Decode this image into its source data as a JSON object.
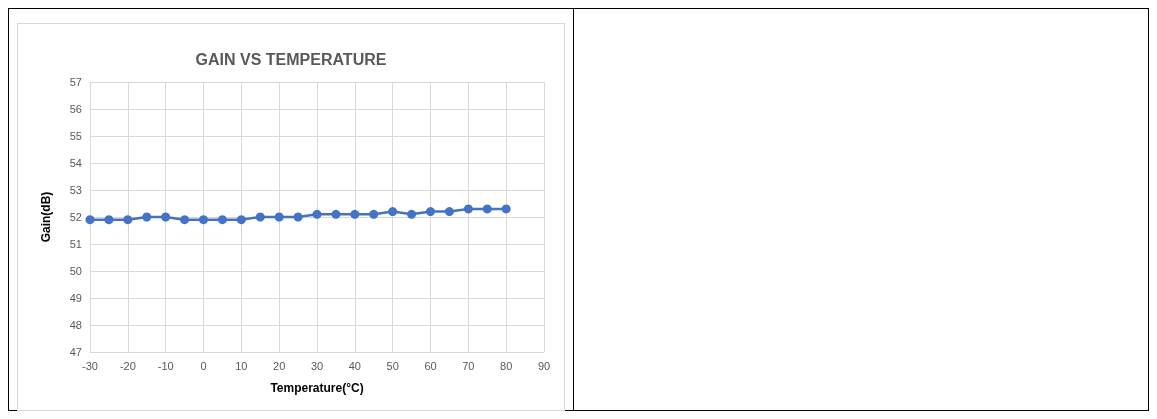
{
  "chart_data": {
    "type": "line",
    "title": "GAIN VS TEMPERATURE",
    "xlabel": "Temperature(°C)",
    "ylabel": "Gain(dB)",
    "x": [
      -30,
      -25,
      -20,
      -15,
      -10,
      -5,
      0,
      5,
      10,
      15,
      20,
      25,
      30,
      35,
      40,
      45,
      50,
      55,
      60,
      65,
      70,
      75,
      80
    ],
    "series": [
      {
        "color": "#4472c4",
        "values": [
          51.9,
          51.9,
          51.9,
          52.0,
          52.0,
          51.9,
          51.9,
          51.9,
          51.9,
          52.0,
          52.0,
          52.0,
          52.1,
          52.1,
          52.1,
          52.1,
          52.2,
          52.1,
          52.2,
          52.2,
          52.3,
          52.3,
          52.3
        ]
      }
    ],
    "xlim": [
      -30,
      90
    ],
    "xticks": [
      -30,
      -20,
      -10,
      0,
      10,
      20,
      30,
      40,
      50,
      60,
      70,
      80,
      90
    ],
    "ylim": [
      47,
      57
    ],
    "yticks": [
      47,
      48,
      49,
      50,
      51,
      52,
      53,
      54,
      55,
      56,
      57
    ],
    "grid": true,
    "marker": "circle",
    "line_style": "solid"
  }
}
